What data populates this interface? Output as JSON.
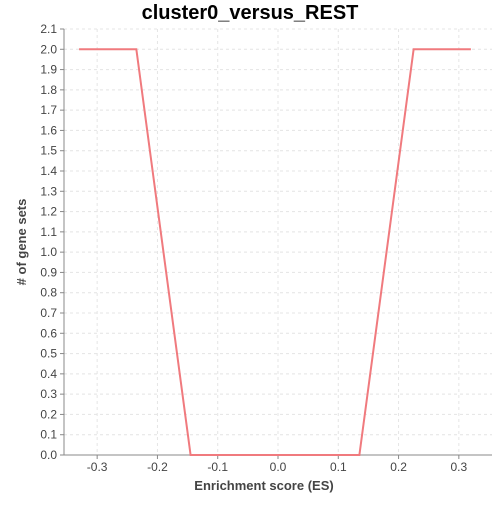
{
  "chart_data": {
    "type": "line",
    "title": "cluster0_versus_REST",
    "xlabel": "Enrichment score (ES)",
    "ylabel": "# of gene sets",
    "xlim": [
      -0.355,
      0.355
    ],
    "ylim": [
      0.0,
      2.1
    ],
    "x_ticks": [
      -0.3,
      -0.2,
      -0.1,
      0.0,
      0.1,
      0.2,
      0.3
    ],
    "x_tick_labels": [
      "-0.3",
      "-0.2",
      "-0.1",
      "0.0",
      "0.1",
      "0.2",
      "0.3"
    ],
    "y_ticks": [
      0.0,
      0.1,
      0.2,
      0.3,
      0.4,
      0.5,
      0.6,
      0.7,
      0.8,
      0.9,
      1.0,
      1.1,
      1.2,
      1.3,
      1.4,
      1.5,
      1.6,
      1.7,
      1.8,
      1.9,
      2.0,
      2.1
    ],
    "y_tick_labels": [
      "0.0",
      "0.1",
      "0.2",
      "0.3",
      "0.4",
      "0.5",
      "0.6",
      "0.7",
      "0.8",
      "0.9",
      "1.0",
      "1.1",
      "1.2",
      "1.3",
      "1.4",
      "1.5",
      "1.6",
      "1.7",
      "1.8",
      "1.9",
      "2.0",
      "2.1"
    ],
    "grid": true,
    "series": [
      {
        "color": "#f07a7e",
        "x": [
          -0.33,
          -0.235,
          -0.145,
          0.135,
          0.225,
          0.32
        ],
        "y": [
          2.0,
          2.0,
          0.0,
          0.0,
          2.0,
          2.0
        ]
      }
    ]
  }
}
